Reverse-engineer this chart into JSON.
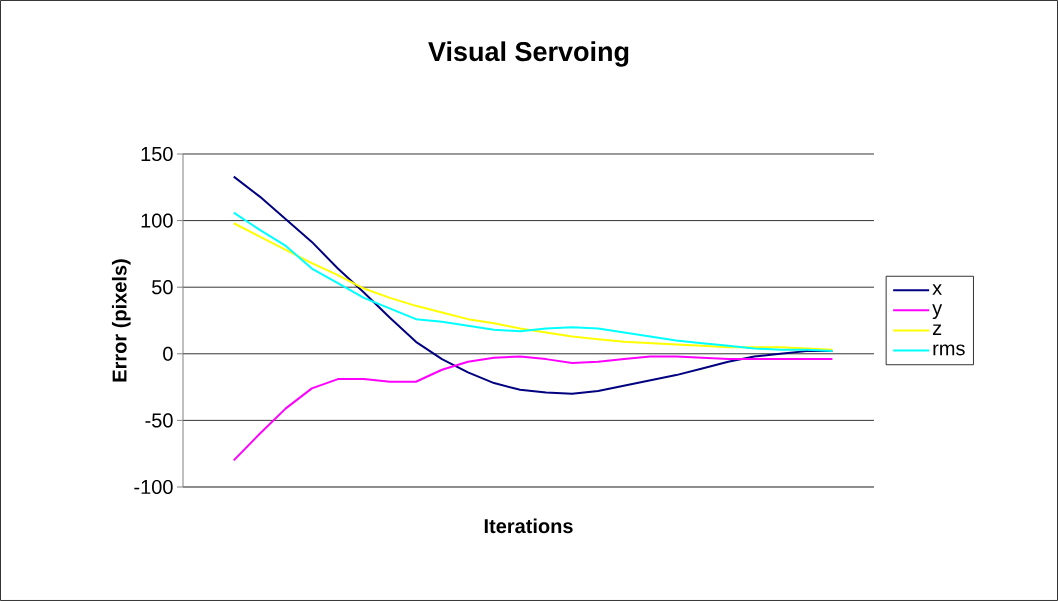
{
  "chart_data": {
    "type": "line",
    "title": "Visual Servoing",
    "xlabel": "Iterations",
    "ylabel": "Error (pixels)",
    "categories": [
      null,
      null,
      null,
      null,
      null,
      null,
      null,
      null,
      null,
      null,
      null,
      null,
      null,
      null,
      null,
      null,
      null,
      null,
      null,
      null,
      null,
      null,
      null,
      null
    ],
    "series": [
      {
        "name": "x",
        "color": "#000080",
        "values": [
          133,
          118,
          101,
          84,
          64,
          46,
          27,
          9,
          -4,
          -14,
          -22,
          -27,
          -29,
          -30,
          -28,
          -24,
          -20,
          -16,
          -11,
          -6,
          -2,
          0,
          2,
          2
        ]
      },
      {
        "name": "y",
        "color": "#ff00ff",
        "values": [
          -80,
          -60,
          -41,
          -26,
          -19,
          -19,
          -21,
          -21,
          -12,
          -6,
          -3,
          -2,
          -4,
          -7,
          -6,
          -4,
          -2,
          -2,
          -3,
          -4,
          -4,
          -4,
          -4,
          -4
        ]
      },
      {
        "name": "z",
        "color": "#ffff00",
        "values": [
          98,
          88,
          78,
          68,
          59,
          49,
          42,
          36,
          31,
          26,
          23,
          19,
          16,
          13,
          11,
          9,
          8,
          7,
          6,
          5,
          5,
          5,
          4,
          3
        ]
      },
      {
        "name": "rms",
        "color": "#00ffff",
        "values": [
          106,
          93,
          81,
          64,
          53,
          42,
          34,
          26,
          24,
          21,
          18,
          17,
          19,
          20,
          19,
          16,
          13,
          10,
          8,
          6,
          4,
          3,
          3,
          2
        ]
      }
    ],
    "ylim": [
      -100,
      150
    ],
    "yticks": [
      -100,
      -50,
      0,
      50,
      100,
      150
    ],
    "grid": "y",
    "legend": "right",
    "marker": "none",
    "line_style": "solid"
  }
}
